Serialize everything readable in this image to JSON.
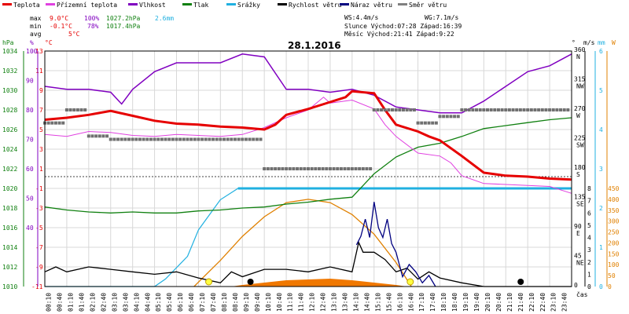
{
  "chart_data": {
    "type": "line",
    "title": "28.1.2016",
    "legend": [
      {
        "name": "Teplota",
        "color": "#e60000"
      },
      {
        "name": "Přízemní teplota",
        "color": "#e040e0"
      },
      {
        "name": "Vlhkost",
        "color": "#8000c0"
      },
      {
        "name": "Tlak",
        "color": "#108010"
      },
      {
        "name": "Srážky",
        "color": "#20b0e0"
      },
      {
        "name": "Rychlost větru",
        "color": "#000000"
      },
      {
        "name": "Náraz větru",
        "color": "#000080"
      },
      {
        "name": "Směr větru",
        "color": "#808080"
      }
    ],
    "stats": {
      "max": {
        "label": "max",
        "temp": "9.0°C",
        "hum": "100%",
        "press": "1027.2hPa",
        "rain": "2.6mm"
      },
      "min": {
        "label": "min",
        "temp": "-0.1°C",
        "hum": "78%",
        "press": "1017.4hPa"
      },
      "avg": {
        "label": "avg",
        "temp": "5°C"
      }
    },
    "info": {
      "ws": "WS:4.4m/s",
      "wg": "WG:7.1m/s",
      "sun": "Slunce Východ:07:28 Západ:16:39",
      "moon": "Měsíc Východ:21:41 Západ:9:22"
    },
    "axes": {
      "hpa": {
        "label": "hPa",
        "color": "#108010",
        "ticks": [
          "1034",
          "1032",
          "1030",
          "1028",
          "1026",
          "1024",
          "1022",
          "1020",
          "1018",
          "1016",
          "1014",
          "1012",
          "1010"
        ]
      },
      "pct": {
        "label": "%",
        "color": "#8000c0",
        "ticks": [
          "100",
          "90",
          "80",
          "70",
          "60",
          "50",
          "40"
        ]
      },
      "degc": {
        "label": "°C",
        "color": "#e60000",
        "ticks": [
          "13",
          "11",
          "9",
          "7",
          "5",
          "3",
          "1",
          "-1",
          "-3",
          "-5",
          "-7",
          "-9",
          "-11"
        ]
      },
      "dir": {
        "label": "°",
        "ticks": [
          {
            "deg": "360",
            "name": "N"
          },
          {
            "deg": "315",
            "name": "NW"
          },
          {
            "deg": "270",
            "name": "W"
          },
          {
            "deg": "225",
            "name": "SW"
          },
          {
            "deg": "180",
            "name": "S"
          },
          {
            "deg": "135",
            "name": "SE"
          },
          {
            "deg": "90",
            "name": "E"
          },
          {
            "deg": "45",
            "name": "NE"
          },
          {
            "deg": "0",
            "name": ""
          }
        ]
      },
      "ms": {
        "label": "m/s",
        "ticks": [
          "8",
          "7",
          "6",
          "5",
          "4",
          "3",
          "2",
          "1",
          "0"
        ]
      },
      "mm": {
        "label": "mm",
        "color": "#20b0e0",
        "ticks": [
          "6",
          "5",
          "4",
          "3",
          "2",
          "1",
          "0"
        ]
      },
      "wm2": {
        "label": "W",
        "color": "#e08000",
        "ticks": [
          "450",
          "400",
          "350",
          "300",
          "250",
          "200",
          "150",
          "100",
          "50",
          "0"
        ]
      },
      "time_label": "čas",
      "time_ticks": [
        "00:10",
        "00:40",
        "01:10",
        "01:40",
        "02:10",
        "02:40",
        "03:10",
        "03:40",
        "04:10",
        "04:40",
        "05:10",
        "05:40",
        "06:10",
        "06:40",
        "07:10",
        "07:40",
        "08:10",
        "08:40",
        "09:10",
        "09:40",
        "10:10",
        "10:40",
        "11:10",
        "11:40",
        "12:10",
        "12:40",
        "13:10",
        "13:40",
        "14:10",
        "14:40",
        "15:10",
        "15:40",
        "16:10",
        "16:40",
        "17:10",
        "17:40",
        "18:10",
        "18:40",
        "19:10",
        "19:40",
        "20:10",
        "20:40",
        "21:10",
        "21:40",
        "22:10",
        "22:40",
        "23:10",
        "23:40"
      ]
    },
    "series": {
      "temperature": [
        [
          0,
          6
        ],
        [
          1,
          6.2
        ],
        [
          2,
          6.5
        ],
        [
          3,
          6.9
        ],
        [
          4,
          6.4
        ],
        [
          5,
          5.9
        ],
        [
          6,
          5.6
        ],
        [
          7,
          5.5
        ],
        [
          8,
          5.3
        ],
        [
          9,
          5.2
        ],
        [
          10,
          5.0
        ],
        [
          10.5,
          5.5
        ],
        [
          11,
          6.5
        ],
        [
          12,
          7.1
        ],
        [
          13,
          7.8
        ],
        [
          13.7,
          8.3
        ],
        [
          14,
          8.9
        ],
        [
          15,
          8.7
        ],
        [
          15.5,
          7
        ],
        [
          16,
          5.5
        ],
        [
          17,
          4.8
        ],
        [
          17.5,
          4.3
        ],
        [
          18,
          3.9
        ],
        [
          19,
          2.3
        ],
        [
          20,
          0.6
        ],
        [
          21,
          0.3
        ],
        [
          22,
          0.2
        ],
        [
          23,
          0.0
        ],
        [
          24,
          -0.1
        ]
      ],
      "ground_temp": [
        [
          0,
          4.5
        ],
        [
          1,
          4.3
        ],
        [
          2,
          4.8
        ],
        [
          3,
          4.7
        ],
        [
          4,
          4.4
        ],
        [
          5,
          4.3
        ],
        [
          6,
          4.5
        ],
        [
          7,
          4.4
        ],
        [
          8,
          4.3
        ],
        [
          9,
          4.5
        ],
        [
          10,
          5.2
        ],
        [
          11,
          6.2
        ],
        [
          12,
          7
        ],
        [
          12.7,
          8.3
        ],
        [
          13,
          7.7
        ],
        [
          14,
          8
        ],
        [
          15,
          7.1
        ],
        [
          15.5,
          5.5
        ],
        [
          16,
          4.3
        ],
        [
          17,
          2.6
        ],
        [
          18,
          2.3
        ],
        [
          18.5,
          1.6
        ],
        [
          19,
          0.3
        ],
        [
          20,
          -0.5
        ],
        [
          21,
          -0.6
        ],
        [
          22,
          -0.7
        ],
        [
          23,
          -0.8
        ],
        [
          24,
          -1.5
        ]
      ],
      "humidity": [
        [
          0,
          88
        ],
        [
          1,
          87
        ],
        [
          2,
          87
        ],
        [
          3,
          86
        ],
        [
          3.5,
          82
        ],
        [
          4,
          87
        ],
        [
          5,
          93
        ],
        [
          6,
          96
        ],
        [
          7,
          96
        ],
        [
          8,
          96
        ],
        [
          9,
          99
        ],
        [
          10,
          98
        ],
        [
          11,
          87
        ],
        [
          12,
          87
        ],
        [
          13,
          86
        ],
        [
          14,
          87
        ],
        [
          15,
          85
        ],
        [
          16,
          81
        ],
        [
          17,
          80
        ],
        [
          18,
          79
        ],
        [
          19,
          79
        ],
        [
          20,
          83
        ],
        [
          21,
          88
        ],
        [
          22,
          93
        ],
        [
          23,
          95
        ],
        [
          24,
          99
        ]
      ],
      "pressure": [
        [
          0,
          1018.1
        ],
        [
          1,
          1017.8
        ],
        [
          2,
          1017.6
        ],
        [
          3,
          1017.5
        ],
        [
          4,
          1017.6
        ],
        [
          5,
          1017.5
        ],
        [
          6,
          1017.5
        ],
        [
          7,
          1017.7
        ],
        [
          8,
          1017.8
        ],
        [
          9,
          1018.0
        ],
        [
          10,
          1018.1
        ],
        [
          11,
          1018.4
        ],
        [
          12,
          1018.6
        ],
        [
          13,
          1018.9
        ],
        [
          14,
          1019.1
        ],
        [
          14.5,
          1020.3
        ],
        [
          15,
          1021.5
        ],
        [
          16,
          1023.2
        ],
        [
          17,
          1024.2
        ],
        [
          18,
          1024.6
        ],
        [
          19,
          1025.3
        ],
        [
          20,
          1026.1
        ],
        [
          21,
          1026.4
        ],
        [
          22,
          1026.7
        ],
        [
          23,
          1027.0
        ],
        [
          24,
          1027.2
        ]
      ],
      "rain": [
        [
          0,
          0
        ],
        [
          5,
          0
        ],
        [
          5.5,
          0.2
        ],
        [
          6.5,
          0.8
        ],
        [
          7,
          1.5
        ],
        [
          8,
          2.3
        ],
        [
          8.8,
          2.6
        ],
        [
          24,
          2.6
        ]
      ],
      "wind_speed": [
        [
          0,
          1.2
        ],
        [
          0.5,
          1.6
        ],
        [
          1,
          1.2
        ],
        [
          2,
          1.6
        ],
        [
          3,
          1.4
        ],
        [
          4,
          1.2
        ],
        [
          5,
          1.0
        ],
        [
          6,
          1.2
        ],
        [
          7,
          0.7
        ],
        [
          8,
          0.3
        ],
        [
          8.5,
          1.2
        ],
        [
          9,
          0.8
        ],
        [
          10,
          1.4
        ],
        [
          11,
          1.4
        ],
        [
          12,
          1.2
        ],
        [
          13,
          1.6
        ],
        [
          14,
          1.2
        ],
        [
          14.3,
          3.6
        ],
        [
          14.5,
          2.8
        ],
        [
          15,
          2.8
        ],
        [
          15.5,
          2.2
        ],
        [
          16,
          1.2
        ],
        [
          16.5,
          1.5
        ],
        [
          17,
          0.6
        ],
        [
          17.5,
          1.2
        ],
        [
          18,
          0.7
        ],
        [
          19,
          0.3
        ],
        [
          20,
          0
        ],
        [
          24,
          0
        ]
      ],
      "wind_gust": [
        [
          14.2,
          3.4
        ],
        [
          14.4,
          4.1
        ],
        [
          14.6,
          5.5
        ],
        [
          14.8,
          4.0
        ],
        [
          15.0,
          6.9
        ],
        [
          15.2,
          4.8
        ],
        [
          15.4,
          4.0
        ],
        [
          15.6,
          5.5
        ],
        [
          15.8,
          3.5
        ],
        [
          16.0,
          2.8
        ],
        [
          16.3,
          0.8
        ],
        [
          16.6,
          1.8
        ],
        [
          16.9,
          1.2
        ],
        [
          17.2,
          0.3
        ],
        [
          17.5,
          0.9
        ],
        [
          17.8,
          0
        ]
      ],
      "wind_dir_samples_deg": [
        [
          0,
          250
        ],
        [
          1,
          270
        ],
        [
          2,
          230
        ],
        [
          3,
          225
        ],
        [
          4,
          225
        ],
        [
          5,
          225
        ],
        [
          6,
          225
        ],
        [
          7,
          225
        ],
        [
          8,
          225
        ],
        [
          9,
          225
        ],
        [
          10,
          180
        ],
        [
          11,
          180
        ],
        [
          12,
          180
        ],
        [
          13,
          180
        ],
        [
          14,
          180
        ],
        [
          15,
          270
        ],
        [
          16,
          270
        ],
        [
          17,
          250
        ],
        [
          18,
          260
        ],
        [
          19,
          270
        ],
        [
          20,
          270
        ],
        [
          21,
          270
        ],
        [
          22,
          270
        ],
        [
          23,
          270
        ],
        [
          24,
          270
        ]
      ],
      "solar": [
        [
          6.8,
          0
        ],
        [
          7,
          20
        ],
        [
          8,
          120
        ],
        [
          9,
          230
        ],
        [
          10,
          320
        ],
        [
          11,
          385
        ],
        [
          12,
          400
        ],
        [
          13,
          385
        ],
        [
          14,
          330
        ],
        [
          15,
          240
        ],
        [
          16,
          110
        ],
        [
          16.7,
          0
        ]
      ],
      "uv_area": [
        [
          8.5,
          0
        ],
        [
          9,
          10
        ],
        [
          10,
          25
        ],
        [
          11,
          40
        ],
        [
          12,
          45
        ],
        [
          13,
          50
        ],
        [
          14,
          40
        ],
        [
          15,
          25
        ],
        [
          16,
          10
        ],
        [
          16.5,
          0
        ]
      ]
    },
    "markers": [
      {
        "type": "sunrise",
        "x": 7.47
      },
      {
        "type": "moonset",
        "x": 9.37
      },
      {
        "type": "sunset",
        "x": 16.65
      },
      {
        "type": "moonrise",
        "x": 21.68
      }
    ]
  }
}
